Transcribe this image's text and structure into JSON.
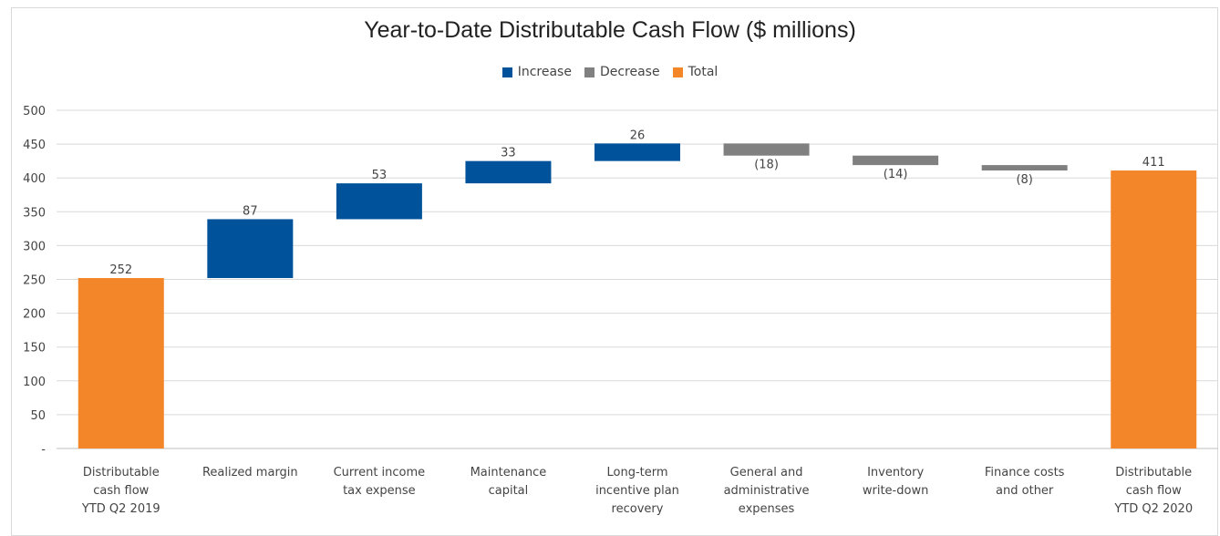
{
  "chart_data": {
    "type": "bar",
    "subtype": "waterfall",
    "title": "Year-to-Date Distributable Cash Flow ($ millions)",
    "legend": {
      "placement": "top-center",
      "entries": [
        {
          "name": "Increase",
          "color": "#00539b"
        },
        {
          "name": "Decrease",
          "color": "#808080"
        },
        {
          "name": "Total",
          "color": "#f4862a"
        }
      ]
    },
    "ylim": [
      0,
      500
    ],
    "yticks": [
      "-",
      "50",
      "100",
      "150",
      "200",
      "250",
      "300",
      "350",
      "400",
      "450",
      "500"
    ],
    "grid": true,
    "categories": [
      [
        "Distributable",
        "cash flow",
        "YTD Q2 2019"
      ],
      [
        "Realized margin"
      ],
      [
        "Current income",
        "tax expense"
      ],
      [
        "Maintenance",
        "capital"
      ],
      [
        "Long-term",
        "incentive plan",
        "recovery"
      ],
      [
        "General and",
        "administrative",
        "expenses"
      ],
      [
        "Inventory",
        "write-down"
      ],
      [
        "Finance costs",
        "and other"
      ],
      [
        "Distributable",
        "cash flow",
        "YTD Q2 2020"
      ]
    ],
    "values": [
      252,
      87,
      53,
      33,
      26,
      -18,
      -14,
      -8,
      411
    ],
    "kinds": [
      "Total",
      "Increase",
      "Increase",
      "Increase",
      "Increase",
      "Decrease",
      "Decrease",
      "Decrease",
      "Total"
    ],
    "labels": [
      "252",
      "87",
      "53",
      "33",
      "26",
      "(18)",
      "(14)",
      "(8)",
      "411"
    ]
  }
}
